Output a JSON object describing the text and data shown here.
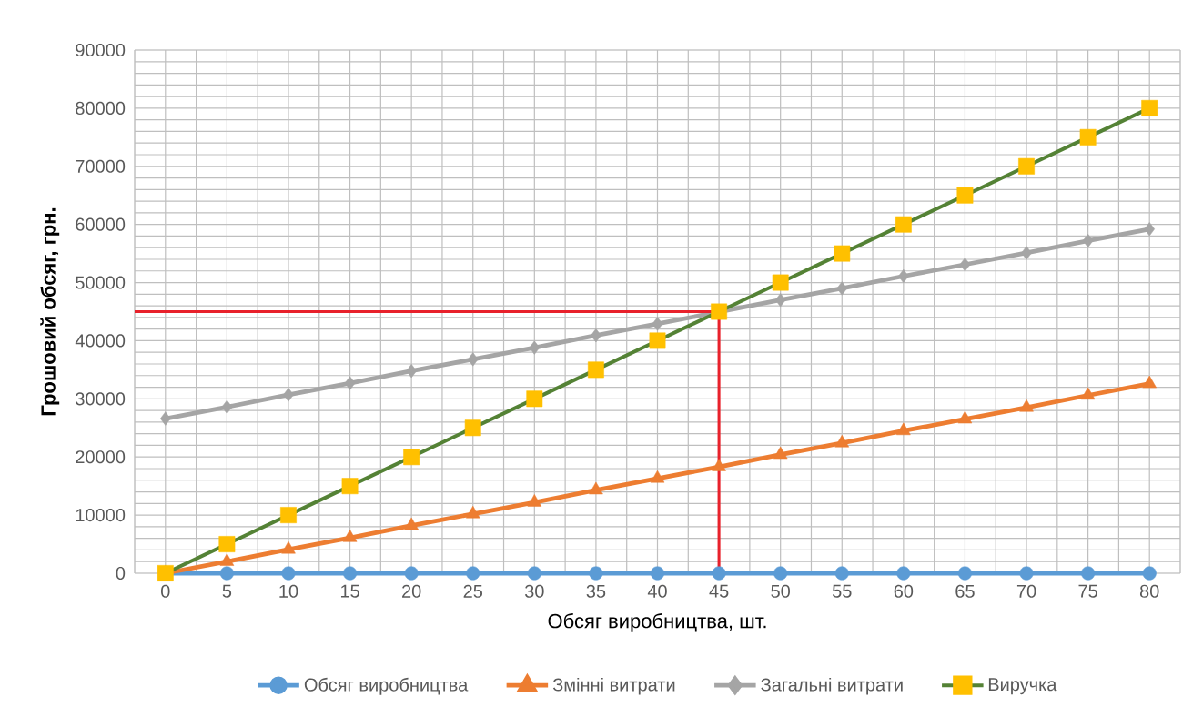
{
  "chart_data": {
    "type": "line",
    "xlabel": "Обсяг виробництва,  шт.",
    "ylabel": "Грошовий обсяг, грн.",
    "categories": [
      "0",
      "5",
      "10",
      "15",
      "20",
      "25",
      "30",
      "35",
      "40",
      "45",
      "50",
      "55",
      "60",
      "65",
      "70",
      "75",
      "80"
    ],
    "series": [
      {
        "name": "Обсяг виробництва",
        "color": "#5b9bd5",
        "marker": "circle",
        "values": [
          0,
          0,
          0,
          0,
          0,
          0,
          0,
          0,
          0,
          0,
          0,
          0,
          0,
          0,
          0,
          0,
          0
        ]
      },
      {
        "name": "Змінні витрати",
        "color": "#ed7d31",
        "marker": "triangle",
        "values": [
          0,
          2000,
          4100,
          6100,
          8200,
          10200,
          12200,
          14300,
          16300,
          18300,
          20400,
          22400,
          24500,
          26500,
          28500,
          30600,
          32600
        ]
      },
      {
        "name": "Загальні витрати",
        "color": "#a5a5a5",
        "marker": "diamond",
        "values": [
          26600,
          28600,
          30700,
          32700,
          34800,
          36800,
          38800,
          40900,
          42900,
          null,
          47000,
          49000,
          51100,
          53100,
          55100,
          57200,
          59200
        ]
      },
      {
        "name": "Виручка",
        "color": "#548235",
        "marker": "square",
        "colors": [
          "#ffc000",
          "#ffc000",
          "#ffc000",
          "#ffc000",
          "#ffc000",
          "#ffc000",
          "#ffc000",
          "#ffc000",
          "#ffc000",
          "#ffc000",
          "#ffc000",
          "#ffc000",
          "#ffc000",
          "#ffc000",
          "#ffc000",
          "#ffc000",
          "#ffc000"
        ],
        "values": [
          0,
          5000,
          10000,
          15000,
          20000,
          25000,
          30000,
          35000,
          40000,
          45000,
          50000,
          55000,
          60000,
          65000,
          70000,
          75000,
          80000
        ]
      }
    ],
    "ylim": [
      0,
      90000
    ],
    "yticks": [
      0,
      10000,
      20000,
      30000,
      40000,
      50000,
      60000,
      70000,
      80000,
      90000
    ],
    "ref_lines": [
      {
        "axis": "y",
        "value": 45000,
        "color": "#e8212b"
      },
      {
        "axis": "x",
        "value": "45",
        "color": "#e8212b"
      }
    ],
    "grid": true,
    "legend": "bottom"
  }
}
